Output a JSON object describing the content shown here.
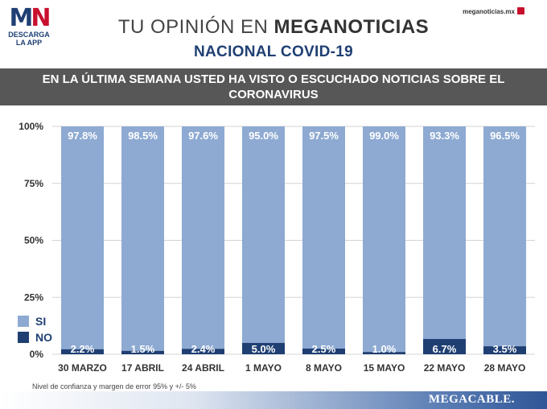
{
  "logo": {
    "mark_m": "M",
    "mark_n": "N",
    "line1": "DESCARGA",
    "line2": "LA APP"
  },
  "header": {
    "title_light": "TU OPINIÓN EN ",
    "title_bold": "MEGANOTICIAS",
    "subtitle": "NACIONAL COVID-19",
    "site": "meganoticias.mx"
  },
  "question": "EN LA ÚLTIMA SEMANA USTED HA VISTO O ESCUCHADO NOTICIAS SOBRE EL CORONAVIRUS",
  "legend": {
    "si": "SI",
    "no": "NO"
  },
  "colors": {
    "si": "#8eaad2",
    "no": "#1f3f73",
    "banner": "#575757",
    "brand": "#2f5597"
  },
  "chart_data": {
    "type": "bar",
    "stacked": true,
    "categories": [
      "30 MARZO",
      "17 ABRIL",
      "24 ABRIL",
      "1 MAYO",
      "8 MAYO",
      "15 MAYO",
      "22 MAYO",
      "28 MAYO"
    ],
    "series": [
      {
        "name": "SI",
        "values": [
          97.8,
          98.5,
          97.6,
          95.0,
          97.5,
          99.0,
          93.3,
          96.5
        ],
        "labels": [
          "97.8%",
          "98.5%",
          "97.6%",
          "95.0%",
          "97.5%",
          "99.0%",
          "93.3%",
          "96.5%"
        ]
      },
      {
        "name": "NO",
        "values": [
          2.2,
          1.5,
          2.4,
          5.0,
          2.5,
          1.0,
          6.7,
          3.5
        ],
        "labels": [
          "2.2%",
          "1.5%",
          "2.4%",
          "5.0%",
          "2.5%",
          "1.0%",
          "6.7%",
          "3.5%"
        ]
      }
    ],
    "yticks": [
      "100%",
      "75%",
      "50%",
      "25%",
      "0%"
    ],
    "ytick_values": [
      100,
      75,
      50,
      25,
      0
    ],
    "ylim": [
      0,
      100
    ],
    "grid": true,
    "legend_position": "bottom-left"
  },
  "footer": {
    "note": "Nivel de confianza y margen de error 95% y +/- 5%",
    "brand": "MEGACABLE."
  }
}
